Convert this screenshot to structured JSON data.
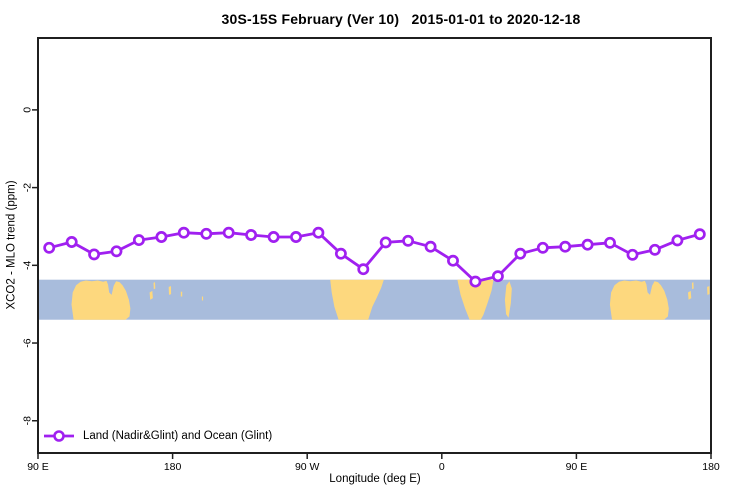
{
  "title": "30S-15S February (Ver 10)   2015-01-01 to 2020-12-18",
  "axes": {
    "x_label": "Longitude (deg E)",
    "y_label": "XCO2 - MLO trend (ppm)",
    "x_ticks": [
      {
        "value": 90,
        "label": "90 E"
      },
      {
        "value": 180,
        "label": "180"
      },
      {
        "value": 270,
        "label": "90 W"
      },
      {
        "value": 360,
        "label": "0"
      },
      {
        "value": 450,
        "label": "90 E"
      },
      {
        "value": 540,
        "label": "180"
      }
    ],
    "y_ticks": [
      {
        "value": 0,
        "label": "0"
      },
      {
        "value": -2,
        "label": "-2"
      },
      {
        "value": -4,
        "label": "-4"
      },
      {
        "value": -6,
        "label": "-6"
      },
      {
        "value": -8,
        "label": "-8"
      }
    ]
  },
  "legend": {
    "label": "Land (Nadir&Glint) and Ocean (Glint)"
  },
  "colors": {
    "line": "#A020F0",
    "ocean": "#A8BCDC",
    "land": "#FDD87E",
    "axis": "#1f1f1f"
  },
  "chart_data": {
    "type": "line",
    "title": "30S-15S February (Ver 10)   2015-01-01 to 2020-12-18",
    "xlabel": "Longitude (deg E)",
    "ylabel": "XCO2 - MLO trend (ppm)",
    "xlim": [
      90,
      540
    ],
    "ylim": [
      -8.83,
      1.85
    ],
    "grid": false,
    "legend_position": "bottom-left-inside",
    "x": [
      97.5,
      112.5,
      127.5,
      142.5,
      157.5,
      172.5,
      187.5,
      202.5,
      217.5,
      232.5,
      247.5,
      262.5,
      277.5,
      292.5,
      307.5,
      322.5,
      337.5,
      352.5,
      367.5,
      382.5,
      397.5,
      412.5,
      427.5,
      442.5,
      457.5,
      472.5,
      487.5,
      502.5,
      517.5,
      532.5
    ],
    "series": [
      {
        "name": "Land (Nadir&Glint) and Ocean (Glint)",
        "marker": "open-circle",
        "values": [
          -3.55,
          -3.4,
          -3.72,
          -3.64,
          -3.35,
          -3.27,
          -3.16,
          -3.19,
          -3.16,
          -3.22,
          -3.27,
          -3.27,
          -3.16,
          -3.7,
          -4.1,
          -3.41,
          -3.37,
          -3.52,
          -3.88,
          -4.42,
          -4.28,
          -3.7,
          -3.55,
          -3.52,
          -3.47,
          -3.42,
          -3.73,
          -3.6,
          -3.36,
          -3.2
        ]
      }
    ],
    "map_band": {
      "description": "latitude strip map 30S-15S, ocean with land silhouettes",
      "y_range": [
        -4.37,
        -5.4
      ],
      "land_regions": [
        {
          "name": "australia-west-copy",
          "points": [
            [
              113.8,
              1
            ],
            [
              112.4,
              0.62
            ],
            [
              113.2,
              0.32
            ],
            [
              115.5,
              0.14
            ],
            [
              118.5,
              0.05
            ],
            [
              122,
              0.02
            ],
            [
              126,
              0.04
            ],
            [
              130,
              0.02
            ],
            [
              133.5,
              0.05
            ],
            [
              135.8,
              0.03
            ],
            [
              136.8,
              0.12
            ],
            [
              137.6,
              0.32
            ],
            [
              139.2,
              0.38
            ],
            [
              140.6,
              0.15
            ],
            [
              142.2,
              0.04
            ],
            [
              144.5,
              0.06
            ],
            [
              146.5,
              0.14
            ],
            [
              148.8,
              0.28
            ],
            [
              150.8,
              0.5
            ],
            [
              151.8,
              0.72
            ],
            [
              151.2,
              0.92
            ],
            [
              148.5,
              1
            ]
          ]
        },
        {
          "name": "new-caledonia",
          "points": [
            [
              164.6,
              0.32
            ],
            [
              166.4,
              0.28
            ],
            [
              166.8,
              0.46
            ],
            [
              165,
              0.5
            ]
          ]
        },
        {
          "name": "vanuatu",
          "points": [
            [
              167.2,
              0.08
            ],
            [
              168.2,
              0.06
            ],
            [
              168.4,
              0.22
            ],
            [
              167.4,
              0.24
            ]
          ]
        },
        {
          "name": "fiji",
          "points": [
            [
              177.4,
              0.18
            ],
            [
              178.9,
              0.16
            ],
            [
              179,
              0.36
            ],
            [
              177.6,
              0.38
            ]
          ]
        },
        {
          "name": "tonga",
          "points": [
            [
              185.5,
              0.3
            ],
            [
              186.4,
              0.3
            ],
            [
              186.4,
              0.42
            ],
            [
              185.5,
              0.42
            ]
          ]
        },
        {
          "name": "cook-islands",
          "points": [
            [
              199.6,
              0.42
            ],
            [
              200.4,
              0.42
            ],
            [
              200.4,
              0.52
            ],
            [
              199.6,
              0.52
            ]
          ]
        },
        {
          "name": "south-america",
          "points": [
            [
              285.4,
              0
            ],
            [
              321.2,
              0
            ],
            [
              319.5,
              0.2
            ],
            [
              316.5,
              0.45
            ],
            [
              313.5,
              0.68
            ],
            [
              310.8,
              1
            ],
            [
              291,
              1
            ],
            [
              288.2,
              0.68
            ],
            [
              286.4,
              0.32
            ]
          ]
        },
        {
          "name": "africa",
          "points": [
            [
              370.4,
              0
            ],
            [
              394.6,
              0
            ],
            [
              393.2,
              0.28
            ],
            [
              390.6,
              0.58
            ],
            [
              387.8,
              0.88
            ],
            [
              386,
              1
            ],
            [
              378.6,
              1
            ],
            [
              375.6,
              0.72
            ],
            [
              372.6,
              0.38
            ]
          ]
        },
        {
          "name": "madagascar",
          "points": [
            [
              402.2,
              0.5
            ],
            [
              403.2,
              0.14
            ],
            [
              405.2,
              0.04
            ],
            [
              406.8,
              0.22
            ],
            [
              406.2,
              0.58
            ],
            [
              404.6,
              0.95
            ],
            [
              403,
              0.86
            ]
          ]
        },
        {
          "name": "australia-east-copy",
          "points": [
            [
              473.8,
              1
            ],
            [
              472.4,
              0.62
            ],
            [
              473.2,
              0.32
            ],
            [
              475.5,
              0.14
            ],
            [
              478.5,
              0.05
            ],
            [
              482,
              0.02
            ],
            [
              486,
              0.04
            ],
            [
              490,
              0.02
            ],
            [
              493.5,
              0.05
            ],
            [
              495.8,
              0.03
            ],
            [
              496.8,
              0.12
            ],
            [
              497.6,
              0.32
            ],
            [
              499.2,
              0.38
            ],
            [
              500.6,
              0.15
            ],
            [
              502.2,
              0.04
            ],
            [
              504.5,
              0.06
            ],
            [
              506.5,
              0.14
            ],
            [
              508.8,
              0.28
            ],
            [
              510.8,
              0.5
            ],
            [
              511.8,
              0.72
            ],
            [
              511.2,
              0.92
            ],
            [
              508.5,
              1
            ]
          ]
        },
        {
          "name": "new-caledonia-east-copy",
          "points": [
            [
              524.6,
              0.32
            ],
            [
              526.4,
              0.28
            ],
            [
              526.8,
              0.46
            ],
            [
              525,
              0.5
            ]
          ]
        },
        {
          "name": "vanuatu-east-copy",
          "points": [
            [
              527.2,
              0.08
            ],
            [
              528.2,
              0.06
            ],
            [
              528.4,
              0.22
            ],
            [
              527.4,
              0.24
            ]
          ]
        },
        {
          "name": "fiji-east-copy",
          "points": [
            [
              537.4,
              0.18
            ],
            [
              538.9,
              0.16
            ],
            [
              539,
              0.36
            ],
            [
              537.6,
              0.38
            ]
          ]
        }
      ]
    }
  }
}
